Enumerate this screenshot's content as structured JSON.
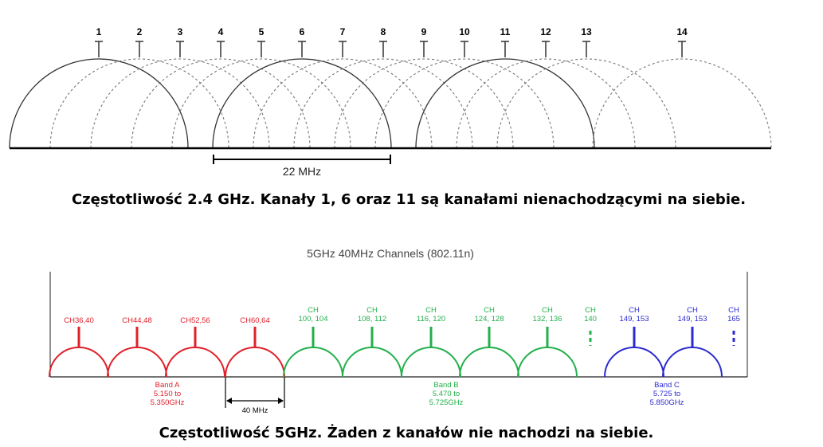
{
  "ghz24": {
    "channels": [
      "1",
      "2",
      "3",
      "4",
      "5",
      "6",
      "7",
      "8",
      "9",
      "10",
      "11",
      "12",
      "13",
      "14"
    ],
    "non_overlapping": [
      "1",
      "6",
      "11"
    ],
    "width_label": "22 MHz",
    "caption": "Częstotliwość 2.4 GHz. Kanały 1, 6 oraz 11 są kanałami nienachodzącymi na siebie."
  },
  "ghz5": {
    "title": "5GHz 40MHz Channels (802.11n)",
    "colors": {
      "band_a": "#e0202a",
      "band_b": "#22b04b",
      "band_c": "#2a2ad0"
    },
    "channels": [
      {
        "label": [
          "CH36,40"
        ],
        "band": "band_a"
      },
      {
        "label": [
          "CH44,48"
        ],
        "band": "band_a"
      },
      {
        "label": [
          "CH52,56"
        ],
        "band": "band_a"
      },
      {
        "label": [
          "CH60,64"
        ],
        "band": "band_a"
      },
      {
        "label": [
          "CH",
          "100, 104"
        ],
        "band": "band_b"
      },
      {
        "label": [
          "CH",
          "108, 112"
        ],
        "band": "band_b"
      },
      {
        "label": [
          "CH",
          "116, 120"
        ],
        "band": "band_b"
      },
      {
        "label": [
          "CH",
          "124, 128"
        ],
        "band": "band_b"
      },
      {
        "label": [
          "CH",
          "132, 136"
        ],
        "band": "band_b"
      },
      {
        "label": [
          "CH",
          "140"
        ],
        "band": "band_b",
        "partial": true
      },
      {
        "label": [
          "CH",
          "149, 153"
        ],
        "band": "band_c"
      },
      {
        "label": [
          "CH",
          "149, 153"
        ],
        "band": "band_c"
      },
      {
        "label": [
          "CH",
          "165"
        ],
        "band": "band_c",
        "partial": true
      }
    ],
    "bands": [
      {
        "key": "band_a",
        "lines": [
          "Band A",
          "5.150 to",
          "5.350GHz"
        ]
      },
      {
        "key": "band_b",
        "lines": [
          "Band B",
          "5.470 to",
          "5.725GHz"
        ]
      },
      {
        "key": "band_c",
        "lines": [
          "Band C",
          "5.725 to",
          "5.850GHz"
        ]
      }
    ],
    "width_label": "40 MHz",
    "caption": "Częstotliwość 5GHz. Żaden z kanałów nie nachodzi na siebie."
  }
}
